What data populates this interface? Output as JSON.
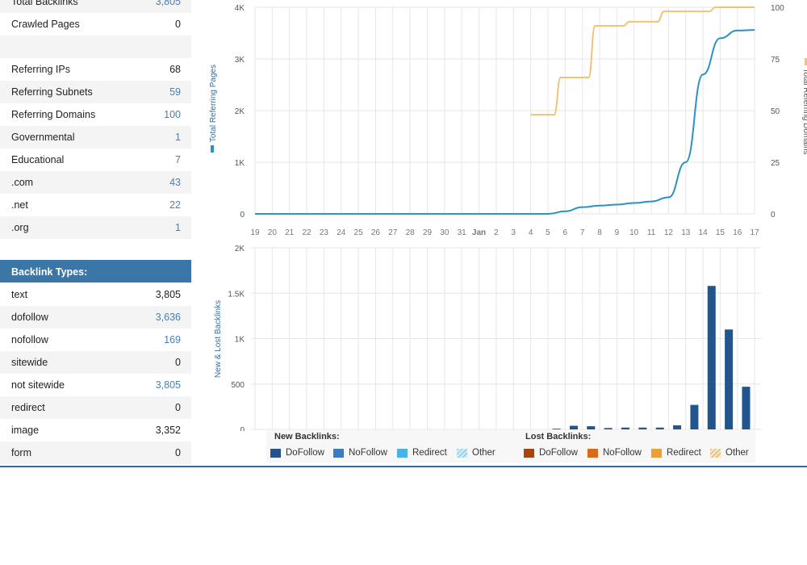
{
  "stats": {
    "top_rows": [
      {
        "label": "Total Backlinks",
        "value": "3,805",
        "link": true
      },
      {
        "label": "Crawled Pages",
        "value": "0",
        "link": false
      }
    ],
    "referring_rows": [
      {
        "label": "Referring IPs",
        "value": "68",
        "link": false
      },
      {
        "label": "Referring Subnets",
        "value": "59",
        "link": true
      },
      {
        "label": "Referring Domains",
        "value": "100",
        "link": true
      },
      {
        "label": "Governmental",
        "value": "1",
        "link": true
      },
      {
        "label": "Educational",
        "value": "7",
        "link": true
      },
      {
        "label": ".com",
        "value": "43",
        "link": true
      },
      {
        "label": ".net",
        "value": "22",
        "link": true
      },
      {
        "label": ".org",
        "value": "1",
        "link": true
      }
    ],
    "backlink_types_title": "Backlink Types:",
    "backlink_types": [
      {
        "label": "text",
        "value": "3,805",
        "link": false
      },
      {
        "label": "dofollow",
        "value": "3,636",
        "link": true
      },
      {
        "label": "nofollow",
        "value": "169",
        "link": true
      },
      {
        "label": "sitewide",
        "value": "0",
        "link": false
      },
      {
        "label": "not sitewide",
        "value": "3,805",
        "link": true
      },
      {
        "label": "redirect",
        "value": "0",
        "link": false
      },
      {
        "label": "image",
        "value": "3,352",
        "link": false
      },
      {
        "label": "form",
        "value": "0",
        "link": false
      }
    ]
  },
  "colors": {
    "pages_line": "#2a93c0",
    "domains_line": "#f0c27a",
    "bar_dofollow": "#22558c",
    "bar_nofollow": "#3a7cc2",
    "bar_redirect": "#4ab3e6",
    "lost_dofollow": "#a8420f",
    "lost_nofollow": "#d96a17",
    "lost_redirect": "#eaa033",
    "grid": "#e6e6e6",
    "axis_text": "#666666"
  },
  "chart_data": [
    {
      "type": "line",
      "categories": [
        "19",
        "20",
        "21",
        "22",
        "23",
        "24",
        "25",
        "26",
        "27",
        "28",
        "29",
        "30",
        "31",
        "Jan",
        "2",
        "3",
        "4",
        "5",
        "6",
        "7",
        "8",
        "9",
        "10",
        "11",
        "12",
        "13",
        "14",
        "15",
        "16",
        "17"
      ],
      "series": [
        {
          "name": "Total Referring Pages",
          "axis": "left",
          "values": [
            0,
            0,
            0,
            0,
            0,
            0,
            0,
            0,
            0,
            0,
            0,
            0,
            0,
            0,
            0,
            0,
            0,
            0,
            50,
            130,
            160,
            180,
            210,
            240,
            320,
            1000,
            2700,
            3400,
            3550,
            3560
          ]
        },
        {
          "name": "Total Referring Domains",
          "axis": "right",
          "values": [
            null,
            null,
            null,
            null,
            null,
            null,
            null,
            null,
            null,
            null,
            null,
            null,
            null,
            null,
            null,
            null,
            48,
            48,
            66,
            66,
            91,
            91,
            93,
            93,
            98,
            98,
            98,
            100,
            100,
            100
          ]
        }
      ],
      "ylabel": "Total Referring Pages",
      "ylabel_right": "Total Referring Domains",
      "ylim": [
        0,
        4000
      ],
      "yticks": [
        "0",
        "1K",
        "2K",
        "3K",
        "4K"
      ],
      "ylim_right": [
        0,
        100
      ],
      "yticks_right": [
        "0",
        "25",
        "50",
        "75",
        "100"
      ],
      "grid": true
    },
    {
      "type": "bar",
      "categories": [
        "19",
        "20",
        "21",
        "22",
        "23",
        "24",
        "25",
        "26",
        "27",
        "28",
        "29",
        "30",
        "31",
        "Jan",
        "2",
        "3",
        "4",
        "5",
        "6",
        "7",
        "8",
        "9",
        "10",
        "11",
        "12",
        "13",
        "14",
        "15",
        "16",
        "17"
      ],
      "series": [
        {
          "name": "DoFollow",
          "values": [
            0,
            0,
            0,
            0,
            0,
            0,
            0,
            0,
            0,
            0,
            0,
            0,
            0,
            0,
            0,
            0,
            0,
            8,
            40,
            35,
            15,
            20,
            20,
            20,
            45,
            270,
            1580,
            1100,
            470,
            0
          ]
        }
      ],
      "ylabel": "New & Lost Backlinks",
      "ylim": [
        0,
        2000
      ],
      "yticks": [
        "0",
        "500",
        "1K",
        "1.5K",
        "2K"
      ],
      "grid": true,
      "legend": {
        "new_title": "New Backlinks:",
        "new_items": [
          "DoFollow",
          "NoFollow",
          "Redirect",
          "Other"
        ],
        "lost_title": "Lost Backlinks:",
        "lost_items": [
          "DoFollow",
          "NoFollow",
          "Redirect",
          "Other"
        ]
      }
    }
  ]
}
